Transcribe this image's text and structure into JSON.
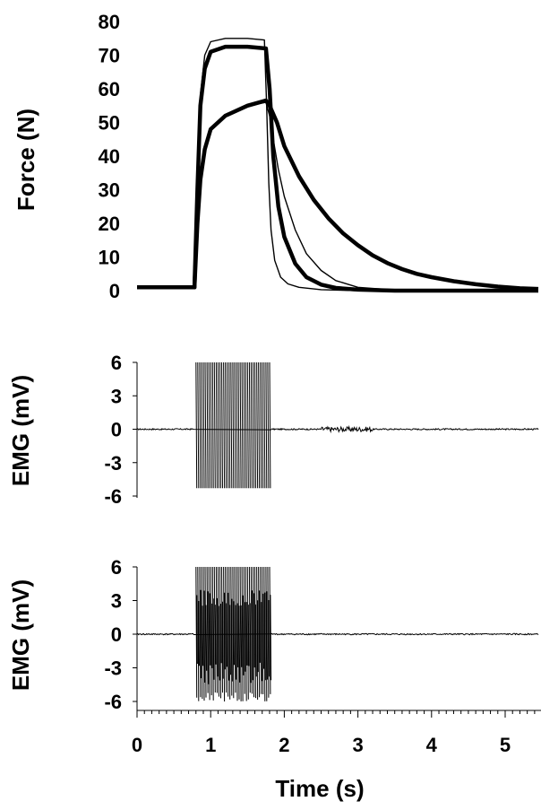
{
  "chart_data": [
    {
      "type": "line",
      "ylabel": "Force (N)",
      "xlim": [
        0,
        5.5
      ],
      "ylim": [
        0,
        80
      ],
      "yticks": [
        0,
        10,
        20,
        30,
        40,
        50,
        60,
        70,
        80
      ],
      "series": [
        {
          "values": [
            [
              0,
              1
            ],
            [
              0.78,
              1
            ],
            [
              0.82,
              30
            ],
            [
              0.86,
              55
            ],
            [
              0.92,
              66
            ],
            [
              1.0,
              71
            ],
            [
              1.2,
              72.5
            ],
            [
              1.5,
              72.5
            ],
            [
              1.75,
              72
            ],
            [
              1.8,
              60
            ],
            [
              1.85,
              40
            ],
            [
              1.92,
              25
            ],
            [
              2.0,
              16
            ],
            [
              2.15,
              8
            ],
            [
              2.3,
              4
            ],
            [
              2.5,
              1.8
            ],
            [
              2.7,
              0.8
            ],
            [
              3.0,
              0.3
            ],
            [
              3.5,
              0
            ],
            [
              4.0,
              0
            ],
            [
              4.5,
              0
            ],
            [
              5.0,
              0
            ],
            [
              5.45,
              0
            ]
          ]
        },
        {
          "values": [
            [
              0,
              1
            ],
            [
              0.78,
              1
            ],
            [
              0.82,
              32
            ],
            [
              0.86,
              58
            ],
            [
              0.92,
              70
            ],
            [
              1.0,
              74
            ],
            [
              1.2,
              75
            ],
            [
              1.5,
              75
            ],
            [
              1.73,
              74.5
            ],
            [
              1.76,
              55
            ],
            [
              1.79,
              32
            ],
            [
              1.82,
              18
            ],
            [
              1.87,
              9
            ],
            [
              1.95,
              4
            ],
            [
              2.05,
              2
            ],
            [
              2.2,
              1
            ],
            [
              2.5,
              0.3
            ],
            [
              3.0,
              0
            ],
            [
              4.0,
              0
            ],
            [
              5.0,
              0
            ],
            [
              5.45,
              0
            ]
          ]
        },
        {
          "values": [
            [
              0,
              1
            ],
            [
              0.78,
              1
            ],
            [
              0.82,
              20
            ],
            [
              0.86,
              33
            ],
            [
              0.92,
              42
            ],
            [
              1.0,
              47.5
            ],
            [
              1.2,
              52
            ],
            [
              1.5,
              55
            ],
            [
              1.75,
              56
            ],
            [
              1.8,
              52
            ],
            [
              1.85,
              45
            ],
            [
              1.92,
              36
            ],
            [
              2.0,
              28
            ],
            [
              2.15,
              18
            ],
            [
              2.3,
              11
            ],
            [
              2.5,
              6
            ],
            [
              2.7,
              3
            ],
            [
              3.0,
              1
            ],
            [
              3.5,
              0.2
            ],
            [
              4.0,
              0
            ],
            [
              5.0,
              0
            ],
            [
              5.45,
              0
            ]
          ]
        },
        {
          "values": [
            [
              0,
              1
            ],
            [
              0.78,
              1
            ],
            [
              0.82,
              20
            ],
            [
              0.86,
              33
            ],
            [
              0.92,
              42
            ],
            [
              1.0,
              48
            ],
            [
              1.2,
              52
            ],
            [
              1.5,
              55
            ],
            [
              1.75,
              56.5
            ],
            [
              1.8,
              55
            ],
            [
              1.9,
              50
            ],
            [
              2.0,
              43
            ],
            [
              2.2,
              34
            ],
            [
              2.4,
              27
            ],
            [
              2.6,
              21.5
            ],
            [
              2.8,
              17
            ],
            [
              3.0,
              13.5
            ],
            [
              3.2,
              10.5
            ],
            [
              3.4,
              8.2
            ],
            [
              3.6,
              6.4
            ],
            [
              3.8,
              5
            ],
            [
              4.0,
              4
            ],
            [
              4.3,
              2.8
            ],
            [
              4.6,
              1.9
            ],
            [
              4.9,
              1.2
            ],
            [
              5.2,
              0.7
            ],
            [
              5.45,
              0.5
            ]
          ]
        }
      ]
    },
    {
      "type": "line",
      "ylabel": "EMG (mV)",
      "xlim": [
        0,
        5.5
      ],
      "ylim": [
        -6,
        6
      ],
      "yticks": [
        6,
        3,
        0,
        -3,
        -6
      ],
      "stim_window": [
        0.8,
        1.8
      ],
      "baseline_noise_after": [
        2.5,
        3.2
      ]
    },
    {
      "type": "line",
      "ylabel": "EMG (mV)",
      "xlabel": "Time (s)",
      "xlim": [
        0,
        5.5
      ],
      "xticks": [
        0,
        1,
        2,
        3,
        4,
        5
      ],
      "ylim": [
        -6,
        6
      ],
      "yticks": [
        6,
        3,
        0,
        -3,
        -6
      ],
      "stim_window": [
        0.8,
        1.8
      ]
    }
  ]
}
